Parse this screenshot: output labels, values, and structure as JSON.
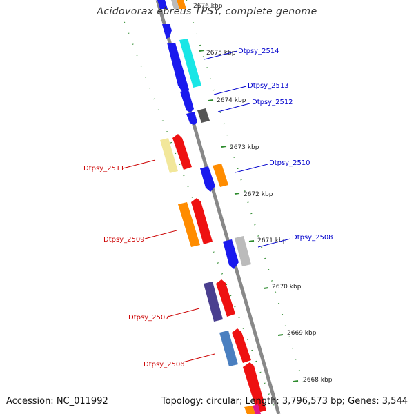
{
  "title": "Acidovorax ebreus TPSY, complete genome",
  "footer": {
    "accession": "Accession: NC_011992",
    "summary": "Topology: circular; Length: 3,796,573 bp; Genes: 3,544"
  },
  "colors": {
    "backbone": "#888888",
    "ruler": "#2e8b2e",
    "forward_label": "#0000cc",
    "reverse_label": "#cc0000"
  },
  "scale_ticks": [
    "2676 kbp",
    "2675 kbp",
    "2674 kbp",
    "2673 kbp",
    "2672 kbp",
    "2671 kbp",
    "2670 kbp",
    "2669 kbp",
    "2668 kbp"
  ],
  "gene_labels": {
    "forward": [
      "Dtpsy_2514",
      "Dtpsy_2513",
      "Dtpsy_2512",
      "Dtpsy_2510",
      "Dtpsy_2508"
    ],
    "reverse": [
      "Dtpsy_2511",
      "Dtpsy_2509",
      "Dtpsy_2507",
      "Dtpsy_2506"
    ]
  },
  "gene_colors": {
    "blue": "#1a1aee",
    "cyan": "#19e6e6",
    "orange": "#ff8c00",
    "red": "#ee1111",
    "pale_yellow": "#f2e79a",
    "dark_gray": "#555555",
    "light_gray": "#bbbbbb",
    "slate": "#4a3f8f",
    "steel_blue": "#4a7fc0"
  }
}
